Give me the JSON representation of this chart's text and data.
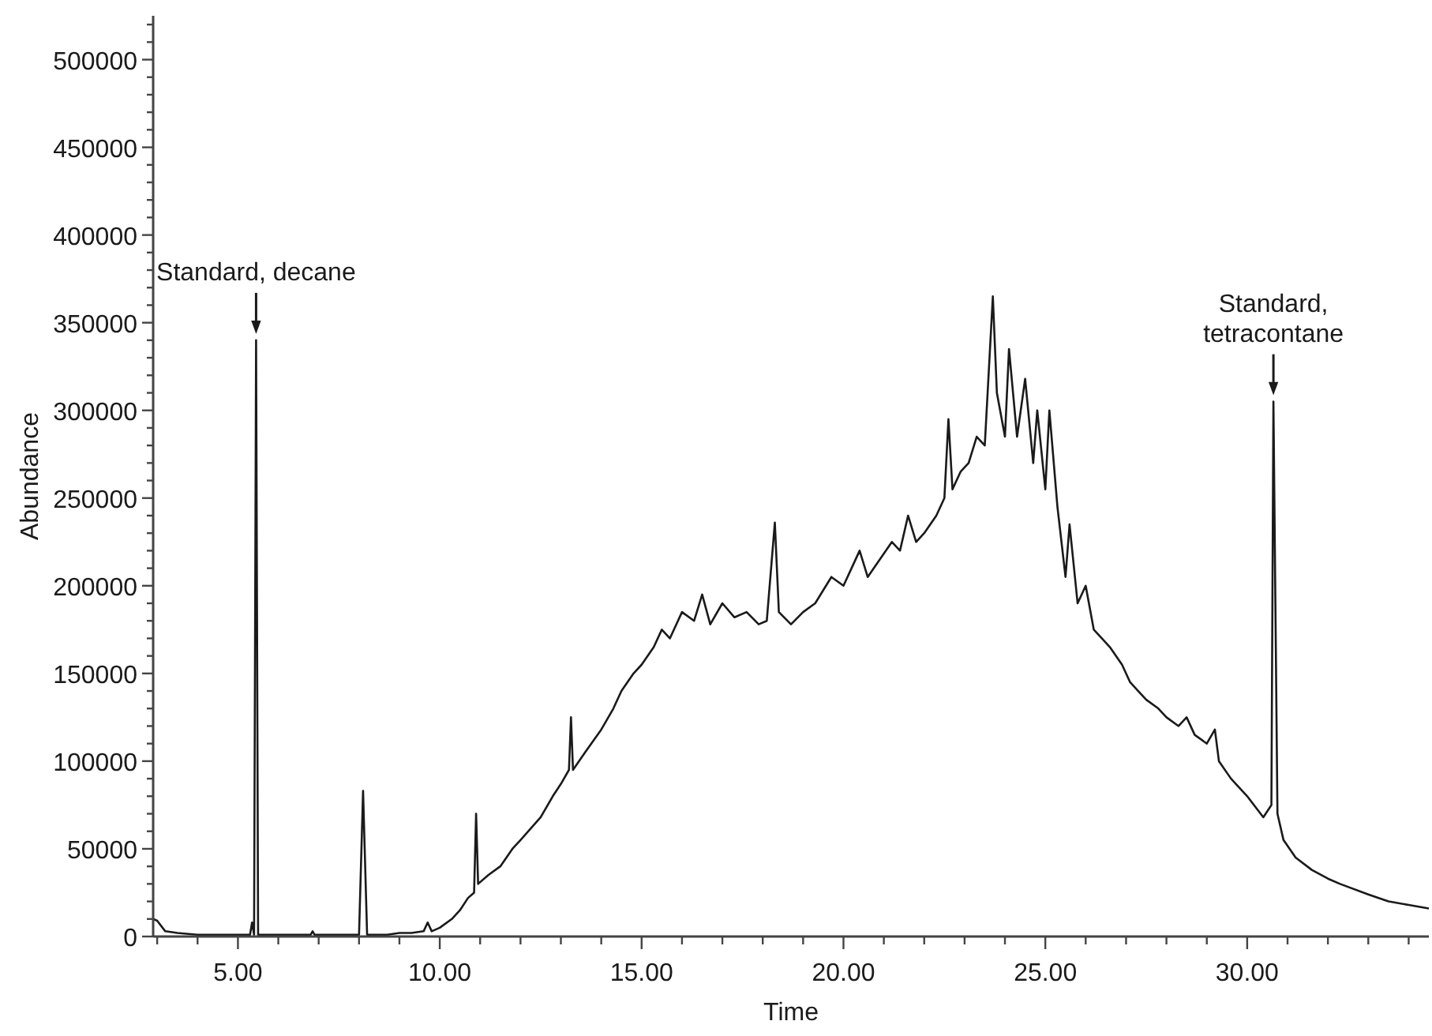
{
  "chart_data": {
    "type": "line",
    "xlabel": "Time",
    "ylabel": "Abundance",
    "xlim": [
      2.9,
      34.5
    ],
    "ylim": [
      0,
      525000
    ],
    "xticks": [
      {
        "value": 3,
        "label": null
      },
      {
        "value": 4,
        "label": null
      },
      {
        "value": 5,
        "label": "5.00"
      },
      {
        "value": 6,
        "label": null
      },
      {
        "value": 7,
        "label": null
      },
      {
        "value": 8,
        "label": null
      },
      {
        "value": 9,
        "label": null
      },
      {
        "value": 10,
        "label": "10.00"
      },
      {
        "value": 11,
        "label": null
      },
      {
        "value": 12,
        "label": null
      },
      {
        "value": 13,
        "label": null
      },
      {
        "value": 14,
        "label": null
      },
      {
        "value": 15,
        "label": "15.00"
      },
      {
        "value": 16,
        "label": null
      },
      {
        "value": 17,
        "label": null
      },
      {
        "value": 18,
        "label": null
      },
      {
        "value": 19,
        "label": null
      },
      {
        "value": 20,
        "label": "20.00"
      },
      {
        "value": 21,
        "label": null
      },
      {
        "value": 22,
        "label": null
      },
      {
        "value": 23,
        "label": null
      },
      {
        "value": 24,
        "label": null
      },
      {
        "value": 25,
        "label": "25.00"
      },
      {
        "value": 26,
        "label": null
      },
      {
        "value": 27,
        "label": null
      },
      {
        "value": 28,
        "label": null
      },
      {
        "value": 29,
        "label": null
      },
      {
        "value": 30,
        "label": "30.00"
      },
      {
        "value": 31,
        "label": null
      },
      {
        "value": 32,
        "label": null
      },
      {
        "value": 33,
        "label": null
      },
      {
        "value": 34,
        "label": null
      }
    ],
    "yticks": [
      0,
      {
        "value": 10000,
        "label": null
      },
      {
        "value": 20000,
        "label": null
      },
      {
        "value": 30000,
        "label": null
      },
      {
        "value": 40000,
        "label": null
      },
      50000,
      {
        "value": 60000,
        "label": null
      },
      {
        "value": 70000,
        "label": null
      },
      {
        "value": 80000,
        "label": null
      },
      {
        "value": 90000,
        "label": null
      },
      100000,
      {
        "value": 110000,
        "label": null
      },
      {
        "value": 120000,
        "label": null
      },
      {
        "value": 130000,
        "label": null
      },
      {
        "value": 140000,
        "label": null
      },
      150000,
      {
        "value": 160000,
        "label": null
      },
      {
        "value": 170000,
        "label": null
      },
      {
        "value": 180000,
        "label": null
      },
      {
        "value": 190000,
        "label": null
      },
      200000,
      {
        "value": 210000,
        "label": null
      },
      {
        "value": 220000,
        "label": null
      },
      {
        "value": 230000,
        "label": null
      },
      {
        "value": 240000,
        "label": null
      },
      250000,
      {
        "value": 260000,
        "label": null
      },
      {
        "value": 270000,
        "label": null
      },
      {
        "value": 280000,
        "label": null
      },
      {
        "value": 290000,
        "label": null
      },
      300000,
      {
        "value": 310000,
        "label": null
      },
      {
        "value": 320000,
        "label": null
      },
      {
        "value": 330000,
        "label": null
      },
      {
        "value": 340000,
        "label": null
      },
      350000,
      {
        "value": 360000,
        "label": null
      },
      {
        "value": 370000,
        "label": null
      },
      {
        "value": 380000,
        "label": null
      },
      {
        "value": 390000,
        "label": null
      },
      400000,
      {
        "value": 410000,
        "label": null
      },
      {
        "value": 420000,
        "label": null
      },
      {
        "value": 430000,
        "label": null
      },
      {
        "value": 440000,
        "label": null
      },
      450000,
      {
        "value": 460000,
        "label": null
      },
      {
        "value": 470000,
        "label": null
      },
      {
        "value": 480000,
        "label": null
      },
      {
        "value": 490000,
        "label": null
      },
      500000,
      {
        "value": 510000,
        "label": null
      },
      {
        "value": 520000,
        "label": null
      }
    ],
    "grid": false,
    "marker": "none",
    "line_style": "solid",
    "series": [
      {
        "color": "#1a1a1a",
        "x": [
          2.9,
          3.0,
          3.2,
          3.5,
          4.0,
          5.0,
          5.3,
          5.35,
          5.4,
          5.45,
          5.5,
          6.0,
          6.8,
          6.85,
          6.9,
          7.5,
          8.0,
          8.1,
          8.2,
          8.7,
          9.0,
          9.3,
          9.6,
          9.7,
          9.8,
          10.0,
          10.3,
          10.5,
          10.7,
          10.85,
          10.9,
          10.95,
          11.2,
          11.5,
          11.8,
          12.0,
          12.5,
          12.8,
          13.0,
          13.2,
          13.25,
          13.3,
          13.6,
          14.0,
          14.3,
          14.5,
          14.8,
          15.0,
          15.3,
          15.5,
          15.7,
          16.0,
          16.3,
          16.5,
          16.7,
          17.0,
          17.3,
          17.6,
          17.9,
          18.1,
          18.3,
          18.4,
          18.7,
          19.0,
          19.3,
          19.7,
          20.0,
          20.2,
          20.4,
          20.6,
          20.9,
          21.2,
          21.4,
          21.6,
          21.8,
          22.0,
          22.3,
          22.5,
          22.6,
          22.7,
          22.9,
          23.1,
          23.3,
          23.5,
          23.7,
          23.8,
          24.0,
          24.1,
          24.3,
          24.5,
          24.7,
          24.8,
          25.0,
          25.1,
          25.3,
          25.5,
          25.6,
          25.8,
          26.0,
          26.2,
          26.4,
          26.6,
          26.9,
          27.1,
          27.3,
          27.5,
          27.8,
          28.0,
          28.3,
          28.5,
          28.7,
          29.0,
          29.2,
          29.3,
          29.6,
          30.0,
          30.4,
          30.6,
          30.65,
          30.75,
          30.9,
          31.2,
          31.6,
          32.0,
          32.3,
          33.0,
          33.5,
          34.0,
          34.5
        ],
        "values": [
          10000,
          9000,
          3000,
          2000,
          1000,
          1000,
          1000,
          8000,
          1000,
          340000,
          1000,
          1000,
          1000,
          3000,
          1000,
          1000,
          1000,
          83000,
          1000,
          1000,
          2000,
          2000,
          3000,
          8000,
          3000,
          5000,
          10000,
          15000,
          22000,
          25000,
          70000,
          30000,
          35000,
          40000,
          50000,
          55000,
          68000,
          80000,
          87000,
          95000,
          125000,
          95000,
          105000,
          118000,
          130000,
          140000,
          150000,
          155000,
          165000,
          175000,
          170000,
          185000,
          180000,
          195000,
          178000,
          190000,
          182000,
          185000,
          178000,
          180000,
          236000,
          185000,
          178000,
          185000,
          190000,
          205000,
          200000,
          210000,
          220000,
          205000,
          215000,
          225000,
          220000,
          240000,
          225000,
          230000,
          240000,
          250000,
          295000,
          255000,
          265000,
          270000,
          285000,
          280000,
          365000,
          310000,
          285000,
          335000,
          285000,
          318000,
          270000,
          300000,
          255000,
          300000,
          245000,
          205000,
          235000,
          190000,
          200000,
          175000,
          170000,
          165000,
          155000,
          145000,
          140000,
          135000,
          130000,
          125000,
          120000,
          125000,
          115000,
          110000,
          118000,
          100000,
          90000,
          80000,
          68000,
          75000,
          305000,
          70000,
          55000,
          45000,
          38000,
          33000,
          30000,
          24000,
          20000,
          18000,
          16000
        ]
      }
    ],
    "annotations": [
      {
        "text": "Standard, decane",
        "x": 5.45,
        "y": 340000
      },
      {
        "text": "Standard, tetracontane",
        "x": 30.65,
        "y": 305000
      }
    ]
  }
}
